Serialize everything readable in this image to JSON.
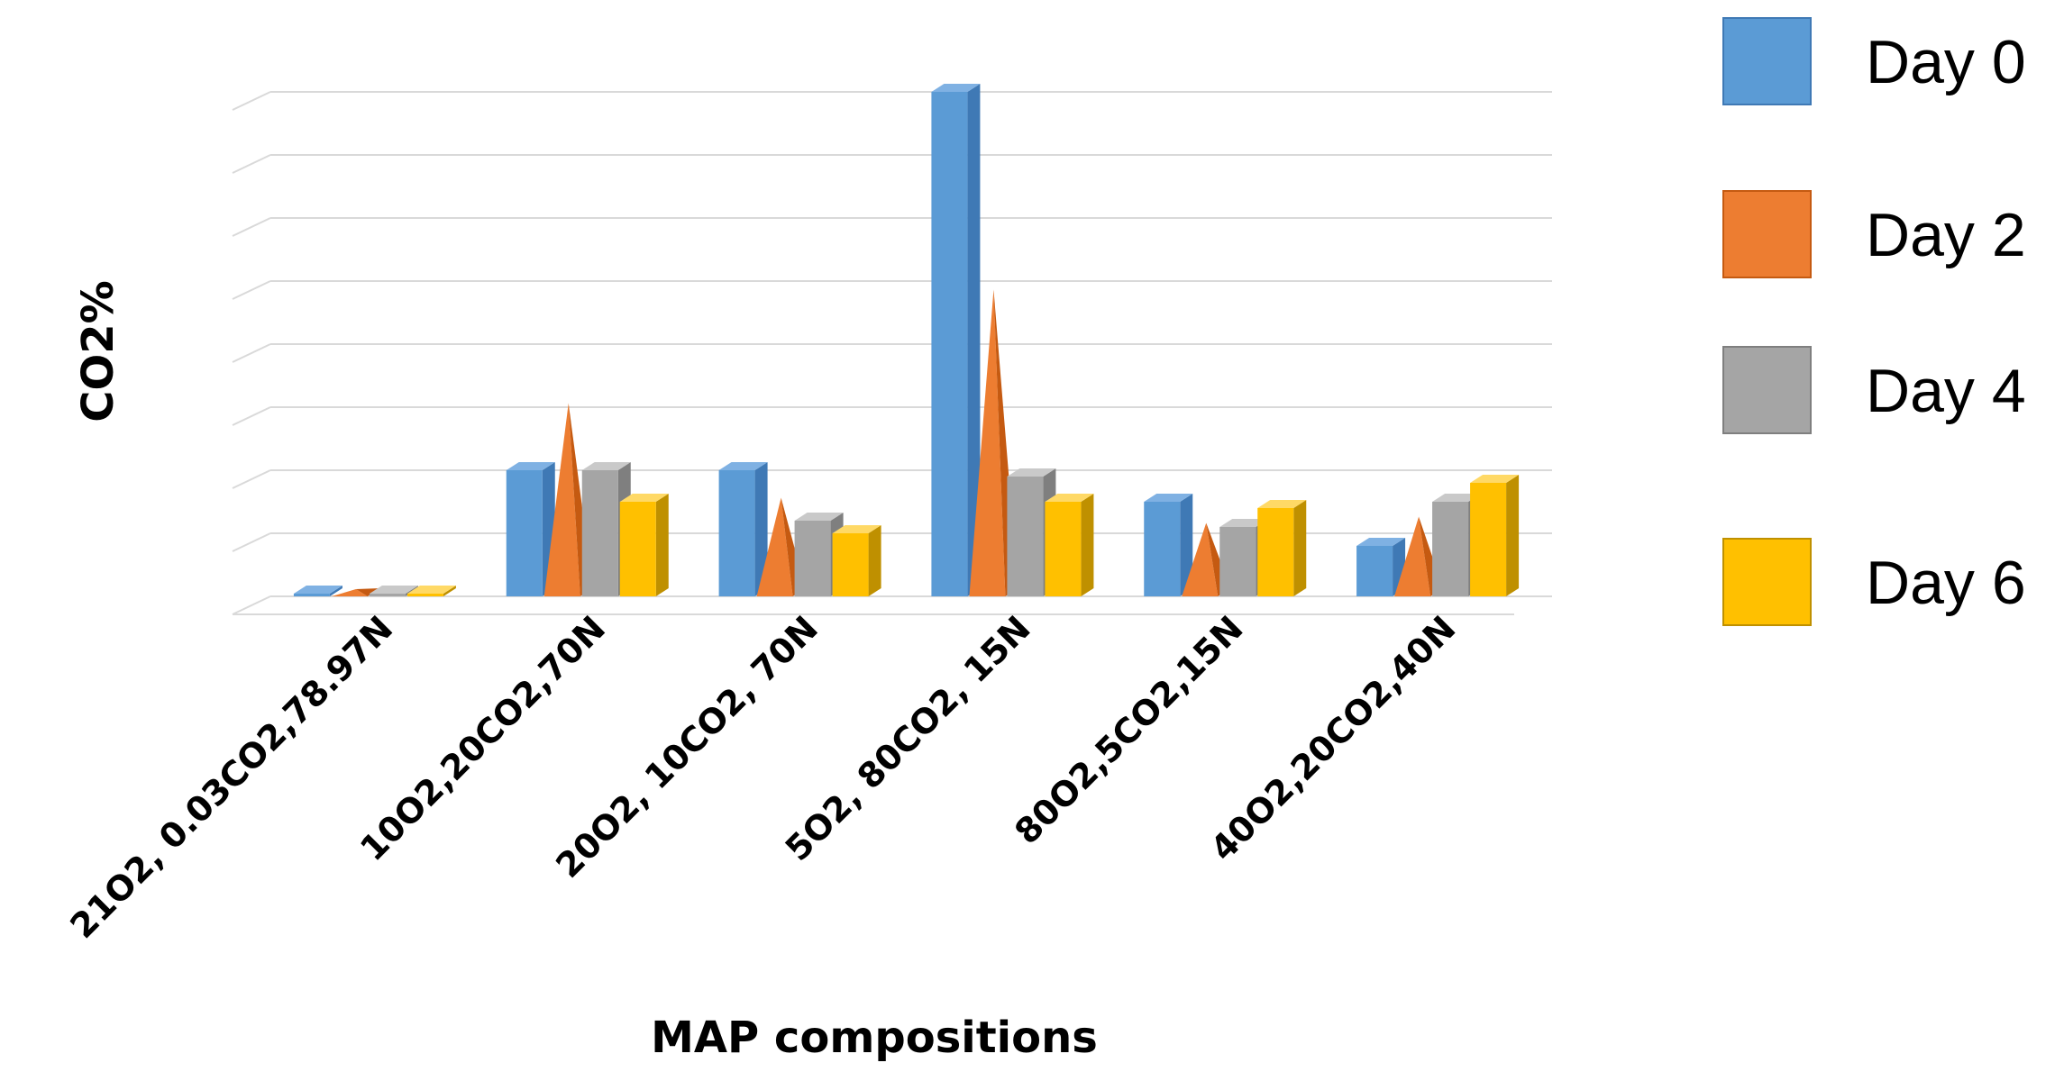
{
  "chart_data": {
    "type": "bar",
    "style": "3d-clustered-column",
    "ylabel": "CO2%",
    "xlabel": "MAP compositions",
    "ylim": [
      0,
      80
    ],
    "grid": true,
    "y_tick_labels_shown": false,
    "legend_position": "right",
    "categories": [
      "21O2, 0.03CO2,78.97N",
      "10O2,20CO2,70N",
      "20O2, 10CO2, 70N",
      "5O2, 80CO2, 15N",
      "80O2,5CO2,15N",
      "40O2,20CO2,40N"
    ],
    "series": [
      {
        "name": "Day 0",
        "shape": "box",
        "color": "#5B9BD5",
        "side": "#3F79B5",
        "top": "#7FB1E3",
        "values": [
          0.03,
          20,
          20,
          80,
          15,
          8
        ]
      },
      {
        "name": "Day 2",
        "shape": "pyramid",
        "color": "#ED7D31",
        "side": "#C55A11",
        "top": "#F4A66E",
        "values": [
          0.5,
          30,
          15,
          48,
          11,
          12
        ]
      },
      {
        "name": "Day 4",
        "shape": "box",
        "color": "#A5A5A5",
        "side": "#7F7F7F",
        "top": "#C9C9C9",
        "values": [
          0.4,
          20,
          12,
          19,
          11,
          15
        ]
      },
      {
        "name": "Day 6",
        "shape": "box",
        "color": "#FFC000",
        "side": "#BF9000",
        "top": "#FFD966",
        "values": [
          0.3,
          15,
          10,
          15,
          14,
          18
        ]
      }
    ]
  }
}
